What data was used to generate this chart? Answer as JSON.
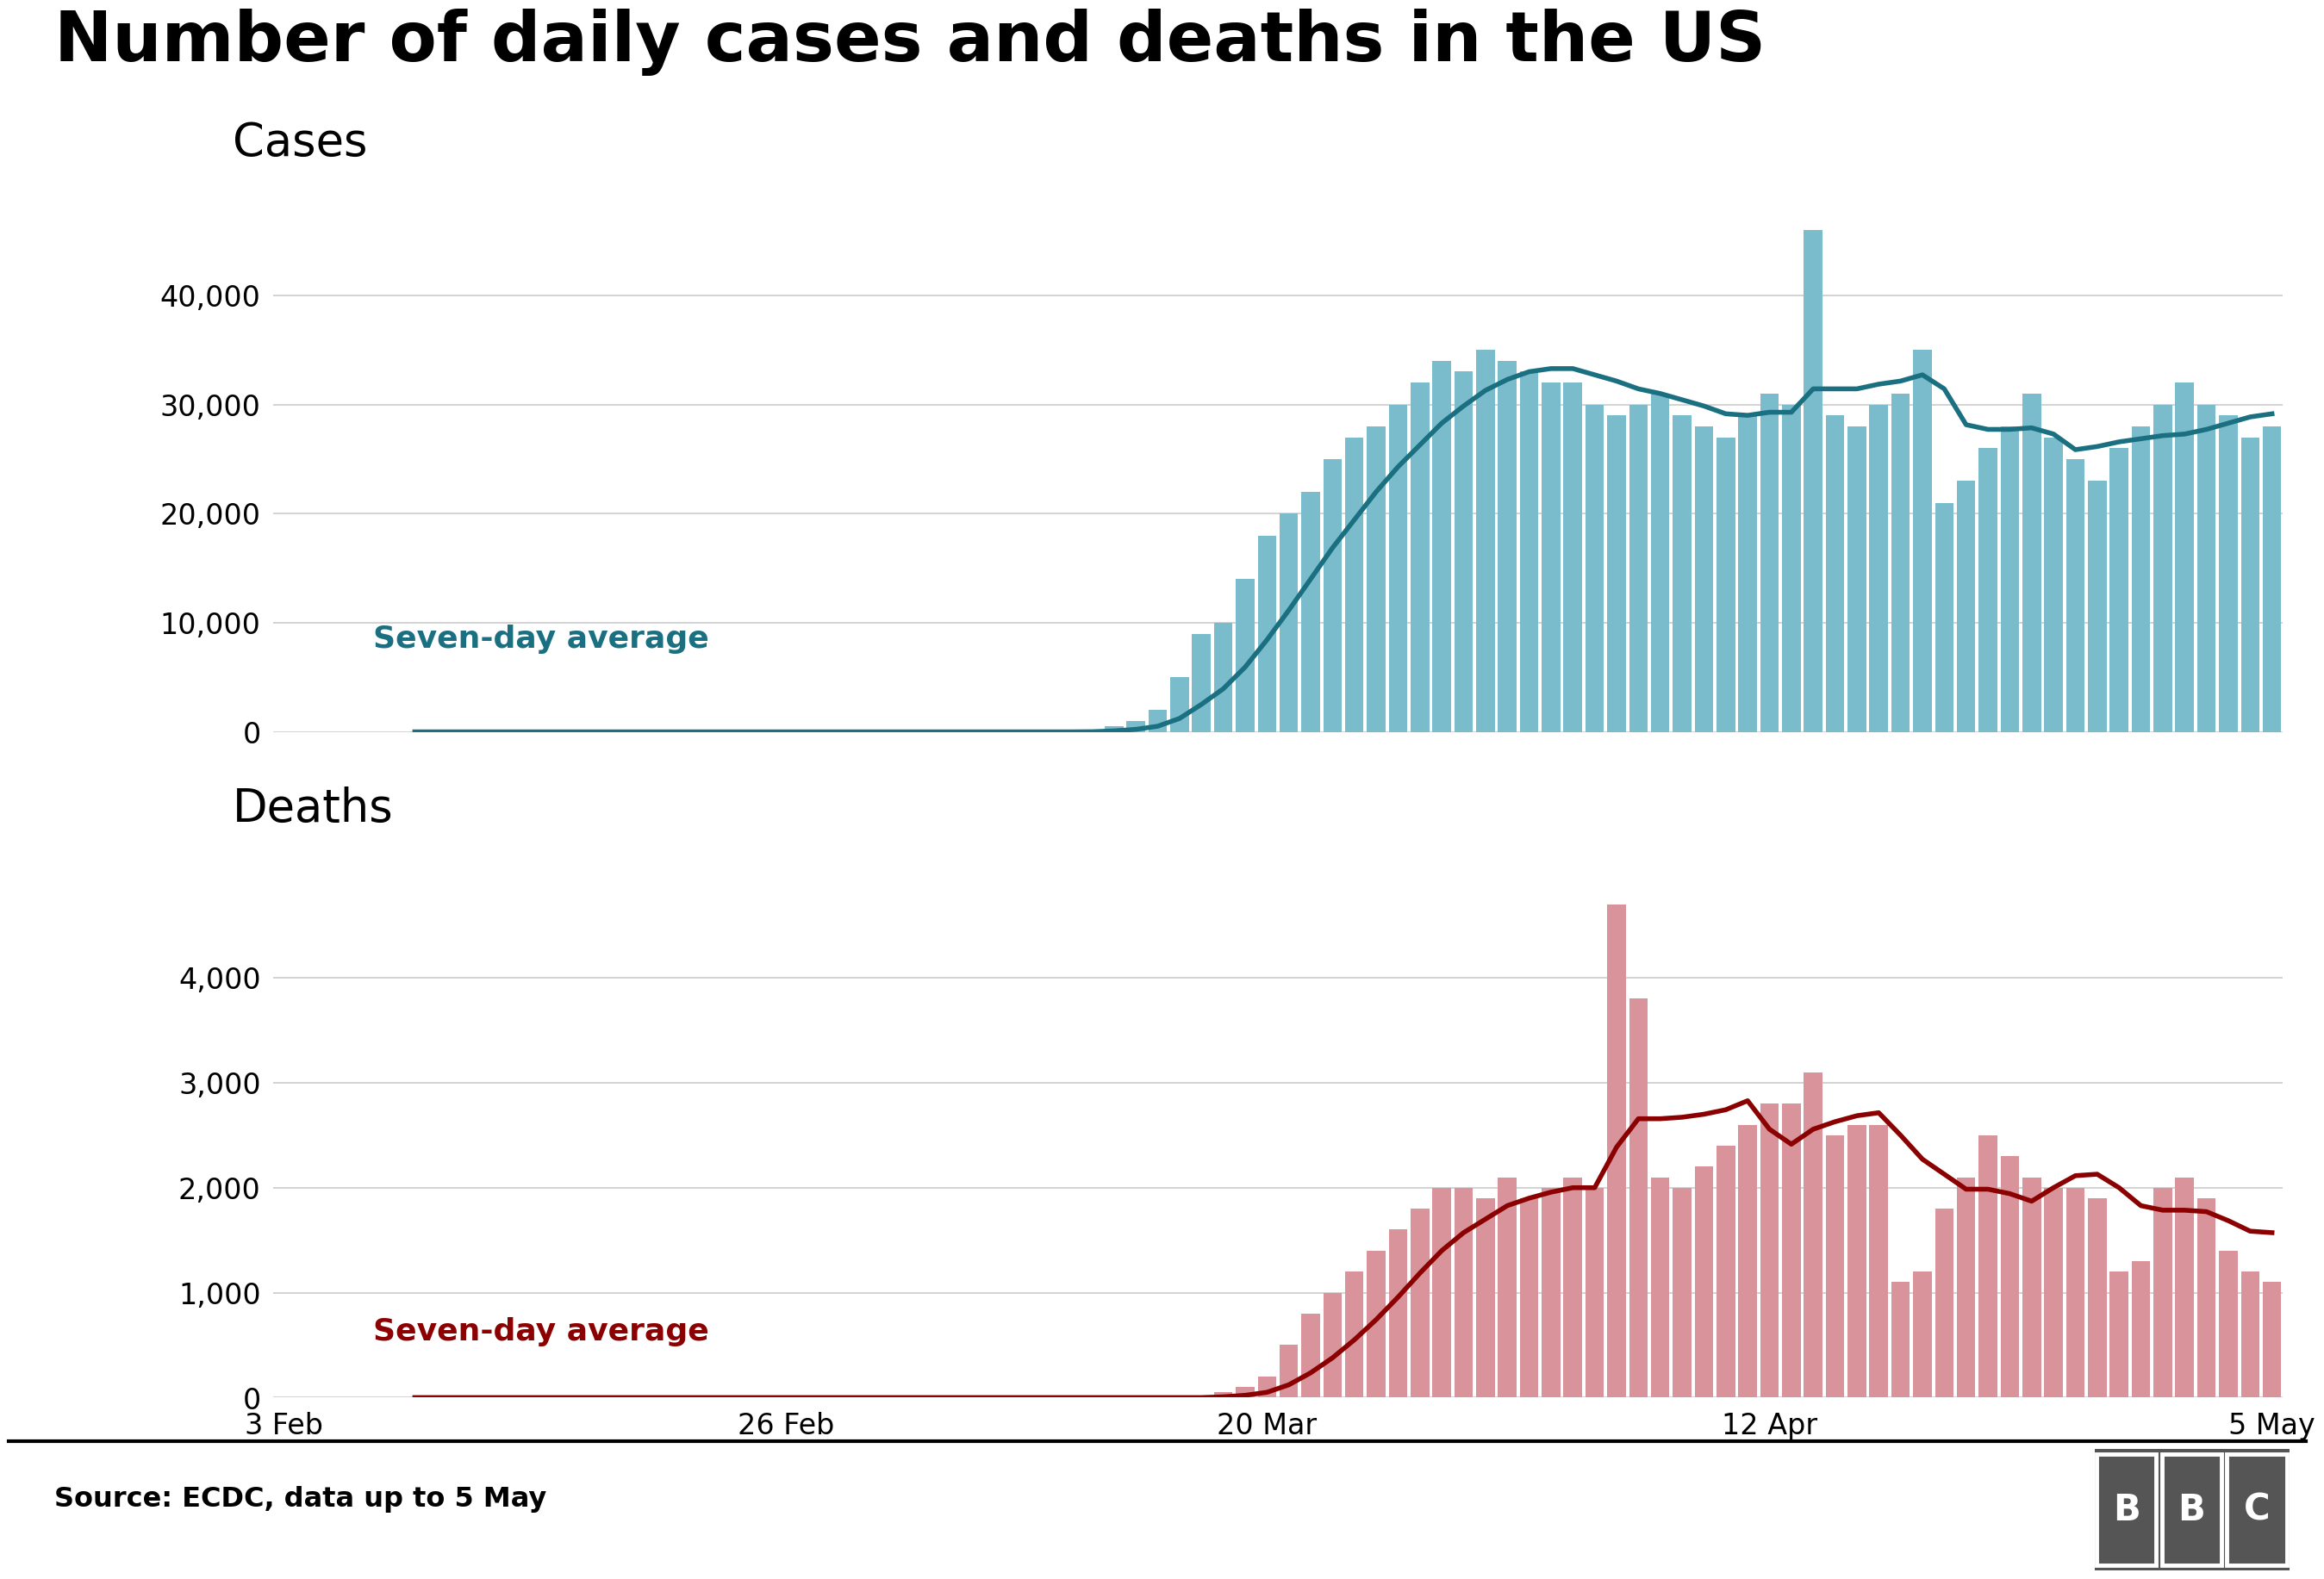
{
  "title": "Number of daily cases and deaths in the US",
  "cases_label": "Cases",
  "deaths_label": "Deaths",
  "avg_label": "Seven-day average",
  "source_text": "Source: ECDC, data up to 5 May",
  "background_color": "#ffffff",
  "cases_bar_color": "#7abccc",
  "cases_line_color": "#1a7080",
  "deaths_bar_color": "#d9939a",
  "deaths_line_color": "#8b0000",
  "grid_color": "#cccccc",
  "cases_ylim": [
    0,
    50000
  ],
  "deaths_ylim": [
    0,
    5200
  ],
  "cases_yticks": [
    0,
    10000,
    20000,
    30000,
    40000
  ],
  "deaths_yticks": [
    0,
    1000,
    2000,
    3000,
    4000
  ],
  "x_tick_labels": [
    "3 Feb",
    "26 Feb",
    "20 Mar",
    "12 Apr",
    "5 May"
  ],
  "x_tick_positions": [
    0,
    23,
    45,
    68,
    91
  ],
  "n_days": 92,
  "cases_daily": [
    0,
    0,
    0,
    0,
    0,
    0,
    0,
    0,
    0,
    0,
    0,
    0,
    0,
    0,
    0,
    0,
    0,
    0,
    0,
    0,
    0,
    0,
    0,
    0,
    0,
    0,
    0,
    0,
    0,
    0,
    0,
    0,
    0,
    0,
    0,
    0,
    0,
    100,
    500,
    1000,
    2000,
    5000,
    9000,
    10000,
    14000,
    18000,
    20000,
    22000,
    25000,
    27000,
    28000,
    30000,
    32000,
    34000,
    33000,
    35000,
    34000,
    33000,
    32000,
    32000,
    30000,
    29000,
    30000,
    31000,
    29000,
    28000,
    27000,
    29000,
    31000,
    30000,
    46000,
    29000,
    28000,
    30000,
    31000,
    35000,
    21000,
    23000,
    26000,
    28000,
    31000,
    27000,
    25000,
    23000,
    26000,
    28000,
    30000,
    32000,
    30000,
    29000,
    27000,
    28000
  ],
  "deaths_daily": [
    0,
    0,
    0,
    0,
    0,
    0,
    0,
    0,
    0,
    0,
    0,
    0,
    0,
    0,
    0,
    0,
    0,
    0,
    0,
    0,
    0,
    0,
    0,
    0,
    0,
    0,
    0,
    0,
    0,
    0,
    0,
    0,
    0,
    0,
    0,
    0,
    0,
    0,
    0,
    0,
    0,
    0,
    0,
    50,
    100,
    200,
    500,
    800,
    1000,
    1200,
    1400,
    1600,
    1800,
    2000,
    2000,
    1900,
    2100,
    1900,
    2000,
    2100,
    2000,
    4700,
    3800,
    2100,
    2000,
    2200,
    2400,
    2600,
    2800,
    2800,
    3100,
    2500,
    2600,
    2600,
    1100,
    1200,
    1800,
    2100,
    2500,
    2300,
    2100,
    2000,
    2000,
    1900,
    1200,
    1300,
    2000,
    2100,
    1900,
    1400,
    1200,
    1100
  ]
}
